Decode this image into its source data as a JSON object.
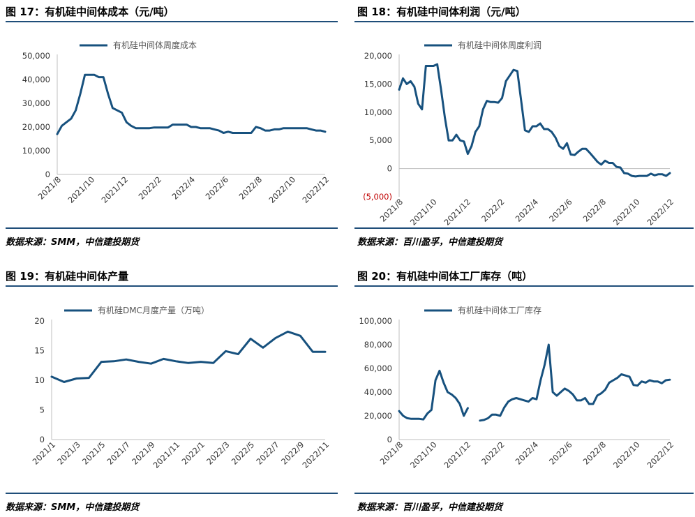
{
  "colors": {
    "line": "#17517e",
    "rule": "#1f4e79",
    "negative": "#c00000",
    "axis": "#bfbfbf"
  },
  "figures": [
    {
      "title": "图 17：有机硅中间体成本（元/吨）",
      "source": "数据来源：SMM，中信建投期货",
      "legend": "有机硅中间体周度成本",
      "y_ticks": [
        "50,000",
        "40,000",
        "30,000",
        "20,000",
        "10,000",
        "0"
      ],
      "x_ticks": [
        "2021/8",
        "2021/10",
        "2021/12",
        "2022/2",
        "2022/4",
        "2022/6",
        "2022/8",
        "2022/10",
        "2022/12"
      ]
    },
    {
      "title": "图 18：有机硅中间体利润（元/吨）",
      "source": "数据来源：百川盈孚，中信建投期货",
      "legend": "有机硅中间体周度利润",
      "y_ticks": [
        "20,000",
        "15,000",
        "10,000",
        "5,000",
        "0",
        "(5,000)"
      ],
      "x_ticks": [
        "2021/8",
        "2021/10",
        "2021/12",
        "2022/2",
        "2022/4",
        "2022/6",
        "2022/8",
        "2022/10",
        "2022/12"
      ]
    },
    {
      "title": "图 19：有机硅中间体产量",
      "source": "数据来源：SMM，中信建投期货",
      "legend": "有机硅DMC月度产量（万吨）",
      "y_ticks": [
        "20",
        "15",
        "10",
        "5",
        "0"
      ],
      "x_ticks": [
        "2021/1",
        "2021/3",
        "2021/5",
        "2021/7",
        "2021/9",
        "2021/11",
        "2022/1",
        "2022/3",
        "2022/5",
        "2022/7",
        "2022/9",
        "2022/11"
      ]
    },
    {
      "title": "图 20：有机硅中间体工厂库存（吨）",
      "source": "数据来源：百川盈孚，中信建投期货",
      "legend": "有机硅中间体工厂库存",
      "y_ticks": [
        "100,000",
        "80,000",
        "60,000",
        "40,000",
        "20,000",
        "0"
      ],
      "x_ticks": [
        "2021/8",
        "2021/10",
        "2021/12",
        "2022/2",
        "2022/4",
        "2022/6",
        "2022/8",
        "2022/10",
        "2022/12"
      ]
    }
  ],
  "chart_data": [
    {
      "type": "line",
      "title": "有机硅中间体成本（元/吨）",
      "series": [
        {
          "name": "有机硅中间体周度成本",
          "x_start": "2021/8",
          "x_end": "2022/12",
          "values": [
            17000,
            20500,
            22000,
            23500,
            27000,
            34000,
            42000,
            42000,
            42000,
            41000,
            41000,
            34000,
            28000,
            27000,
            26000,
            22000,
            20500,
            19500,
            19500,
            19500,
            19500,
            19800,
            19800,
            19800,
            19800,
            21000,
            21000,
            21000,
            21000,
            20000,
            20000,
            19500,
            19500,
            19500,
            19000,
            18500,
            17500,
            18000,
            17500,
            17500,
            17500,
            17500,
            17500,
            20000,
            19500,
            18500,
            18500,
            19000,
            19000,
            19500,
            19500,
            19500,
            19500,
            19500,
            19500,
            19000,
            18500,
            18500,
            18000
          ]
        }
      ],
      "ylim": [
        0,
        50000
      ]
    },
    {
      "type": "line",
      "title": "有机硅中间体利润（元/吨）",
      "series": [
        {
          "name": "有机硅中间体周度利润",
          "x_start": "2021/8",
          "x_end": "2022/12",
          "values": [
            14000,
            16000,
            15000,
            15500,
            14500,
            11500,
            10500,
            18200,
            18200,
            18200,
            18500,
            14000,
            9000,
            5000,
            5000,
            6000,
            5000,
            4800,
            2600,
            4000,
            6500,
            7500,
            10500,
            12000,
            11800,
            11800,
            11700,
            12500,
            15500,
            16500,
            17500,
            17300,
            12000,
            6800,
            6500,
            7500,
            7500,
            8000,
            7000,
            7000,
            6500,
            5500,
            4000,
            3500,
            4500,
            2500,
            2400,
            3000,
            3500,
            3500,
            2800,
            2000,
            1200,
            700,
            1400,
            1000,
            1000,
            300,
            200,
            -800,
            -900,
            -1300,
            -1400,
            -1300,
            -1300,
            -1300,
            -900,
            -1200,
            -1000,
            -1000,
            -1300,
            -800
          ]
        }
      ],
      "ylim": [
        -5000,
        20000
      ]
    },
    {
      "type": "line",
      "title": "有机硅中间体产量",
      "series": [
        {
          "name": "有机硅DMC月度产量（万吨）",
          "x_start": "2021/1",
          "x_end": "2022/11",
          "values": [
            10.6,
            9.7,
            10.3,
            10.4,
            13.1,
            13.2,
            13.5,
            13.1,
            12.8,
            13.6,
            13.2,
            12.9,
            13.1,
            12.9,
            14.9,
            14.4,
            17.0,
            15.5,
            17.1,
            18.2,
            17.5,
            14.8,
            14.8
          ]
        }
      ],
      "ylim": [
        0,
        20
      ]
    },
    {
      "type": "line",
      "title": "有机硅中间体工厂库存（吨）",
      "series": [
        {
          "name": "有机硅中间体工厂库存",
          "x_start": "2021/8",
          "x_end": "2022/12",
          "values": [
            24000,
            20000,
            18000,
            17500,
            17500,
            17500,
            17000,
            22000,
            25000,
            50000,
            58000,
            48000,
            40000,
            38000,
            35000,
            30000,
            20000,
            26500,
            null,
            null,
            16000,
            16500,
            18000,
            21000,
            21000,
            20000,
            27000,
            32000,
            34000,
            35000,
            34000,
            33000,
            32000,
            35000,
            34000,
            50000,
            63000,
            80000,
            40000,
            37000,
            40000,
            43000,
            41000,
            38000,
            33000,
            33000,
            35000,
            30000,
            30000,
            37000,
            39000,
            42000,
            48000,
            50000,
            52000,
            55000,
            54000,
            53000,
            46000,
            45500,
            49000,
            48000,
            50000,
            49000,
            49000,
            47500,
            50000,
            50500
          ]
        }
      ],
      "ylim": [
        0,
        100000
      ]
    }
  ]
}
